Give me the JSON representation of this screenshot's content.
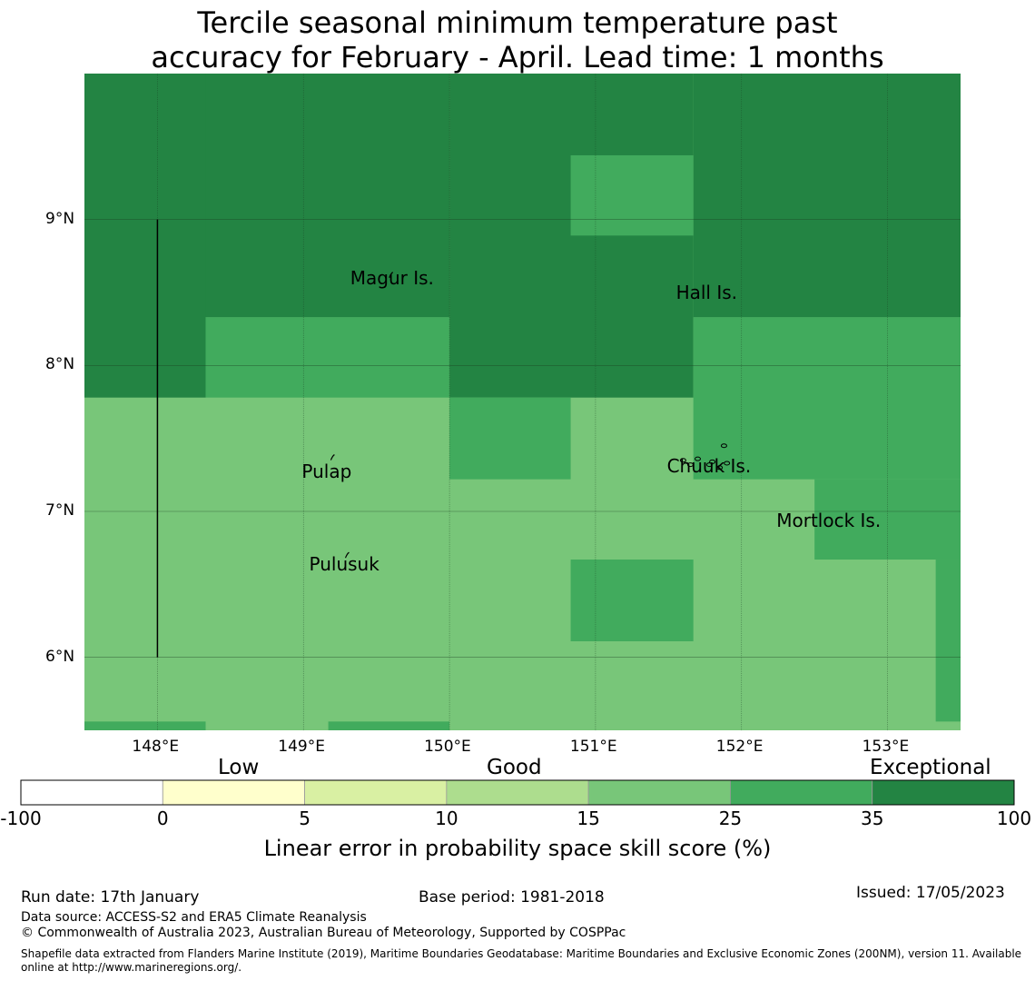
{
  "title_line1": "Tercile seasonal minimum temperature past",
  "title_line2": "accuracy for February - April. Lead time: 1 months",
  "colors": {
    "exceptional": "#238443",
    "very_good": "#41ab5d",
    "good": "#78c679",
    "bin_10_15": "#addd8e",
    "bin_5_10": "#d9f0a3",
    "bin_0_5": "#ffffcc",
    "bin_neg": "#ffffff"
  },
  "map": {
    "lon_range": [
      147.5,
      153.5
    ],
    "lat_range": [
      5.5,
      10.0
    ],
    "lat_ticks": [
      {
        "value": 9,
        "label": "9°N"
      },
      {
        "value": 8,
        "label": "8°N"
      },
      {
        "value": 7,
        "label": "7°N"
      },
      {
        "value": 6,
        "label": "6°N"
      }
    ],
    "lon_ticks": [
      {
        "value": 148,
        "label": "148°E"
      },
      {
        "value": 149,
        "label": "149°E"
      },
      {
        "value": 150,
        "label": "150°E"
      },
      {
        "value": 151,
        "label": "151°E"
      },
      {
        "value": 152,
        "label": "152°E"
      },
      {
        "value": 153,
        "label": "153°E"
      }
    ],
    "skill_cells": [
      {
        "lon": [
          147.5,
          148.33
        ],
        "lat": [
          7.78,
          10.0
        ],
        "category": "exceptional"
      },
      {
        "lon": [
          148.33,
          150.0
        ],
        "lat": [
          8.33,
          10.0
        ],
        "category": "exceptional"
      },
      {
        "lon": [
          150.0,
          151.67
        ],
        "lat": [
          7.78,
          10.0
        ],
        "category": "exceptional"
      },
      {
        "lon": [
          151.67,
          153.5
        ],
        "lat": [
          8.33,
          10.0
        ],
        "category": "exceptional"
      },
      {
        "lon": [
          148.33,
          150.0
        ],
        "lat": [
          7.78,
          8.33
        ],
        "category": "very_good"
      },
      {
        "lon": [
          150.83,
          151.67
        ],
        "lat": [
          8.89,
          9.44
        ],
        "category": "very_good"
      },
      {
        "lon": [
          151.67,
          153.5
        ],
        "lat": [
          7.22,
          8.33
        ],
        "category": "very_good"
      },
      {
        "lon": [
          150.0,
          150.83
        ],
        "lat": [
          7.22,
          7.78
        ],
        "category": "very_good"
      },
      {
        "lon": [
          152.5,
          153.5
        ],
        "lat": [
          6.67,
          7.22
        ],
        "category": "very_good"
      },
      {
        "lon": [
          150.83,
          151.67
        ],
        "lat": [
          6.11,
          6.67
        ],
        "category": "very_good"
      },
      {
        "lon": [
          153.33,
          153.5
        ],
        "lat": [
          5.56,
          6.67
        ],
        "category": "very_good"
      },
      {
        "lon": [
          147.5,
          148.33
        ],
        "lat": [
          5.5,
          5.56
        ],
        "category": "very_good"
      },
      {
        "lon": [
          149.17,
          150.0
        ],
        "lat": [
          5.5,
          5.56
        ],
        "category": "very_good"
      }
    ],
    "boundary_line": {
      "lon": 148.0,
      "lat": [
        6.0,
        9.0
      ]
    },
    "places": [
      {
        "name": "Magur Is.",
        "lon": 149.6,
        "lat": 8.6
      },
      {
        "name": "Hall Is.",
        "lon": 151.8,
        "lat": 8.5
      },
      {
        "name": "Pulap",
        "lon": 149.2,
        "lat": 7.36
      },
      {
        "name": "Chuuk Is.",
        "lon": 151.8,
        "lat": 7.4
      },
      {
        "name": "Mortlock Is.",
        "lon": 152.6,
        "lat": 7.0
      },
      {
        "name": "Pulusuk",
        "lon": 149.3,
        "lat": 6.7
      }
    ]
  },
  "colorbar": {
    "categories": [
      "Low",
      "Good",
      "Exceptional"
    ],
    "bins": [
      {
        "from": -100,
        "to": 0,
        "color": "#ffffff"
      },
      {
        "from": 0,
        "to": 5,
        "color": "#ffffcc"
      },
      {
        "from": 5,
        "to": 10,
        "color": "#d9f0a3"
      },
      {
        "from": 10,
        "to": 15,
        "color": "#addd8e"
      },
      {
        "from": 15,
        "to": 25,
        "color": "#78c679"
      },
      {
        "from": 25,
        "to": 35,
        "color": "#41ab5d"
      },
      {
        "from": 35,
        "to": 100,
        "color": "#238443"
      }
    ],
    "tick_labels": [
      "-100",
      "0",
      "5",
      "10",
      "15",
      "25",
      "35",
      "100"
    ],
    "label": "Linear error in probability space skill score (%)"
  },
  "footer": {
    "run_date": "Run date: 17th January",
    "base_period": "Base period: 1981-2018",
    "issued": "Issued: 17/05/2023",
    "data_source": "Data source: ACCESS-S2 and ERA5 Climate Reanalysis",
    "copyright": "© Commonwealth of Australia 2023, Australian Bureau of Meteorology, Supported by COSPPac",
    "shapefile": "Shapefile data extracted from Flanders Marine Institute (2019), Maritime Boundaries Geodatabase: Maritime Boundaries and Exclusive Economic Zones (200NM), version 11. Available online at http://www.marineregions.org/."
  }
}
